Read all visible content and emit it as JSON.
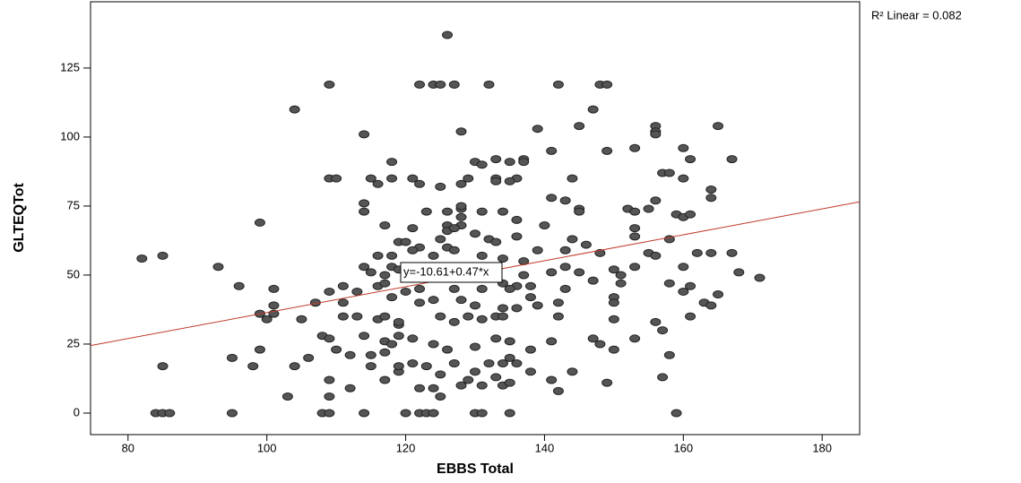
{
  "chart_data": {
    "type": "scatter",
    "x_label": "EBBS Total",
    "y_label": "GLTEQTot",
    "r2_label": "R² Linear = 0.082",
    "fit": {
      "intercept": -10.61,
      "slope": 0.47,
      "label": "y=-10.61+0.47*x",
      "color": "#c0392b"
    },
    "color": "#555555",
    "x": [
      126,
      109,
      122,
      124,
      125,
      127,
      132,
      142,
      148,
      149,
      104,
      147,
      128,
      114,
      139,
      145,
      156,
      165,
      156,
      156,
      160,
      153,
      141,
      149,
      118,
      130,
      131,
      133,
      135,
      137,
      137,
      161,
      167,
      109,
      110,
      115,
      118,
      121,
      128,
      129,
      133,
      136,
      144,
      157,
      158,
      160,
      116,
      125,
      122,
      133,
      135,
      141,
      143,
      156,
      164,
      164,
      114,
      114,
      123,
      126,
      128,
      128,
      134,
      131,
      136,
      128,
      145,
      145,
      152,
      153,
      155,
      159,
      160,
      161,
      99,
      117,
      126,
      128,
      140,
      121,
      126,
      127,
      130,
      132,
      133,
      136,
      144,
      146,
      153,
      153,
      158,
      119,
      120,
      122,
      121,
      125,
      126,
      127,
      124,
      116,
      118,
      131,
      134,
      137,
      139,
      143,
      148,
      155,
      156,
      162,
      167,
      164,
      82,
      85,
      93,
      114,
      118,
      119,
      115,
      117,
      123,
      126,
      130,
      133,
      134,
      136,
      137,
      141,
      143,
      145,
      150,
      151,
      153,
      160,
      168,
      171,
      96,
      101,
      111,
      116,
      117,
      120,
      122,
      127,
      131,
      135,
      138,
      143,
      147,
      151,
      158,
      161,
      165,
      109,
      113,
      107,
      101,
      111,
      118,
      122,
      124,
      128,
      130,
      134,
      136,
      138,
      139,
      142,
      150,
      150,
      160,
      163,
      164,
      99,
      100,
      101,
      105,
      111,
      113,
      116,
      117,
      119,
      119,
      125,
      127,
      129,
      131,
      133,
      134,
      142,
      150,
      156,
      157,
      161,
      108,
      109,
      114,
      117,
      118,
      119,
      121,
      124,
      126,
      130,
      133,
      135,
      138,
      141,
      147,
      148,
      150,
      153,
      99,
      95,
      98,
      85,
      104,
      106,
      110,
      112,
      115,
      115,
      117,
      119,
      119,
      121,
      123,
      125,
      127,
      129,
      130,
      132,
      134,
      135,
      136,
      138,
      141,
      144,
      149,
      158,
      157,
      103,
      109,
      109,
      112,
      117,
      122,
      124,
      125,
      128,
      131,
      133,
      134,
      135,
      142,
      84,
      85,
      86,
      95,
      108,
      109,
      114,
      120,
      122,
      123,
      124,
      130,
      131,
      135,
      159
    ],
    "values": [
      137,
      119,
      119,
      119,
      119,
      119,
      119,
      119,
      119,
      119,
      110,
      110,
      102,
      101,
      103,
      104,
      104,
      104,
      102,
      101,
      96,
      96,
      95,
      95,
      91,
      91,
      90,
      92,
      91,
      92,
      91,
      92,
      92,
      85,
      85,
      85,
      85,
      85,
      83,
      85,
      85,
      85,
      85,
      87,
      87,
      85,
      83,
      82,
      83,
      84,
      84,
      78,
      77,
      77,
      81,
      78,
      76,
      73,
      73,
      73,
      74,
      75,
      73,
      73,
      70,
      71,
      74,
      73,
      74,
      73,
      74,
      72,
      71,
      72,
      69,
      68,
      68,
      68,
      68,
      67,
      66,
      67,
      65,
      63,
      62,
      64,
      63,
      61,
      67,
      64,
      63,
      62,
      62,
      60,
      59,
      63,
      60,
      59,
      57,
      57,
      57,
      57,
      56,
      55,
      59,
      59,
      58,
      58,
      57,
      58,
      58,
      58,
      56,
      57,
      53,
      53,
      53,
      52,
      51,
      50,
      52,
      50,
      50,
      51,
      47,
      46,
      50,
      51,
      53,
      51,
      52,
      50,
      53,
      53,
      51,
      49,
      46,
      45,
      46,
      46,
      47,
      44,
      45,
      45,
      45,
      45,
      46,
      45,
      48,
      47,
      47,
      46,
      43,
      44,
      44,
      40,
      39,
      40,
      42,
      40,
      41,
      41,
      39,
      38,
      38,
      42,
      39,
      40,
      42,
      40,
      44,
      40,
      39,
      36,
      34,
      36,
      34,
      35,
      35,
      34,
      35,
      32,
      33,
      35,
      33,
      35,
      34,
      35,
      35,
      35,
      34,
      33,
      30,
      35,
      28,
      27,
      28,
      26,
      25,
      28,
      27,
      25,
      23,
      24,
      27,
      26,
      23,
      26,
      27,
      25,
      23,
      27,
      23,
      20,
      17,
      17,
      17,
      20,
      23,
      21,
      21,
      17,
      22,
      15,
      17,
      18,
      17,
      14,
      18,
      12,
      15,
      18,
      18,
      20,
      18,
      15,
      12,
      15,
      11,
      21,
      13,
      6,
      6,
      12,
      9,
      12,
      9,
      9,
      6,
      10,
      10,
      13,
      10,
      11,
      8,
      0,
      0,
      0,
      0,
      0,
      0,
      0,
      0,
      0,
      0,
      0,
      0,
      0,
      0,
      0
    ],
    "xlim": [
      74.6,
      185.4
    ],
    "ylim": [
      -7.8,
      149
    ],
    "xticks": [
      80,
      100,
      120,
      140,
      160,
      180
    ],
    "yticks": [
      0,
      25,
      50,
      75,
      100,
      125
    ]
  }
}
